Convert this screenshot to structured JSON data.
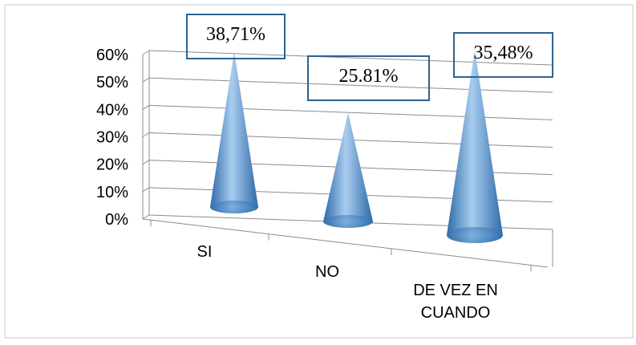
{
  "chart_data": {
    "type": "bar",
    "style": "3d-cone",
    "categories": [
      "SI",
      "NO",
      "DE VEZ EN CUANDO"
    ],
    "category_lines": [
      [
        "SI"
      ],
      [
        "NO"
      ],
      [
        "DE VEZ EN",
        "CUANDO"
      ]
    ],
    "values": [
      38.71,
      25.81,
      35.48
    ],
    "data_labels": [
      "38,71%",
      "25.81%",
      "35,48%"
    ],
    "yticks": [
      "0%",
      "10%",
      "20%",
      "30%",
      "40%",
      "50%",
      "60%"
    ],
    "ylim": [
      0,
      60
    ],
    "grid": true,
    "colors": {
      "cone_dark": "#2f6aa8",
      "cone_mid": "#5b9bd5",
      "cone_light": "#a9cdf0",
      "label_border": "#2e6290",
      "grid": "#8c8c8c",
      "outer_border": "#c8c8c8"
    }
  }
}
